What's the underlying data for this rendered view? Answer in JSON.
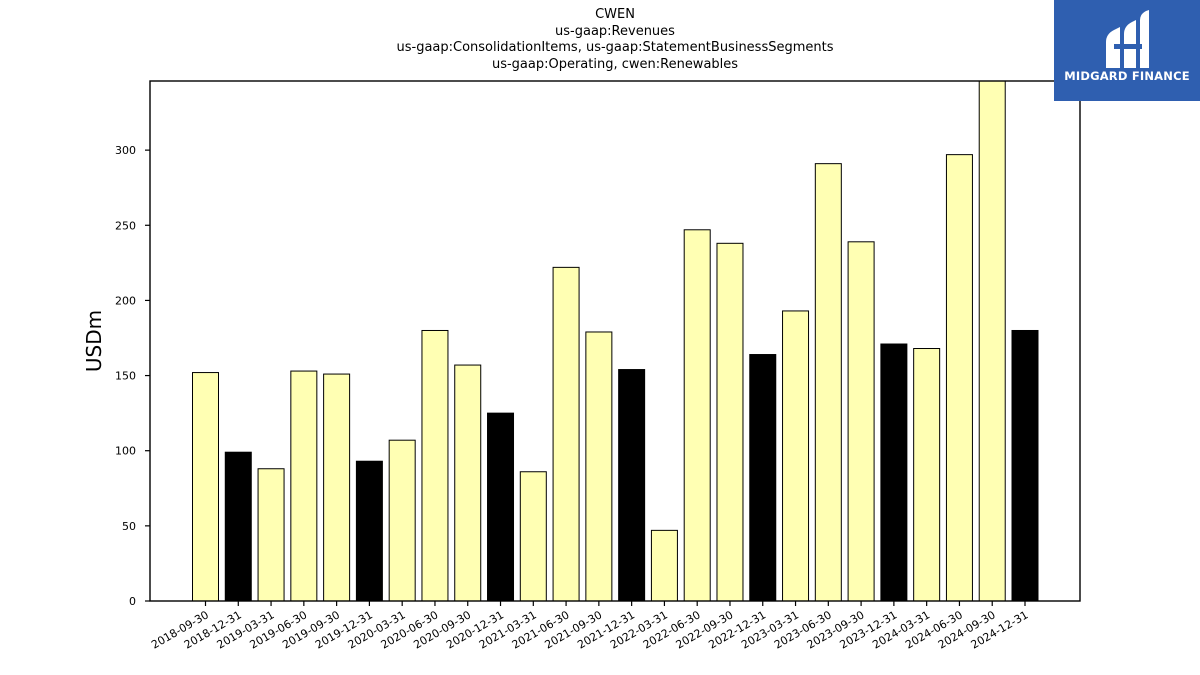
{
  "chart_data": {
    "type": "bar",
    "title_lines": [
      "CWEN",
      "us-gaap:Revenues",
      "us-gaap:ConsolidationItems, us-gaap:StatementBusinessSegments",
      "us-gaap:Operating, cwen:Renewables"
    ],
    "ylabel": "USDm",
    "xlabel": "",
    "ylim": [
      0,
      346
    ],
    "yticks": [
      0,
      50,
      100,
      150,
      200,
      250,
      300
    ],
    "grid": false,
    "categories": [
      "2018-09-30",
      "2018-12-31",
      "2019-03-31",
      "2019-06-30",
      "2019-09-30",
      "2019-12-31",
      "2020-03-31",
      "2020-06-30",
      "2020-09-30",
      "2020-12-31",
      "2021-03-31",
      "2021-06-30",
      "2021-09-30",
      "2021-12-31",
      "2022-03-31",
      "2022-06-30",
      "2022-09-30",
      "2022-12-31",
      "2023-03-31",
      "2023-06-30",
      "2023-09-30",
      "2023-12-31",
      "2024-03-31",
      "2024-06-30",
      "2024-09-30",
      "2024-12-31"
    ],
    "values": [
      152,
      99,
      88,
      153,
      151,
      93,
      107,
      180,
      157,
      125,
      86,
      222,
      179,
      154,
      47,
      247,
      238,
      164,
      193,
      291,
      239,
      171,
      168,
      297,
      346,
      180
    ],
    "bar_colors": {
      "quarter": "#ffffb3",
      "year_end": "#000000",
      "edge": "#000000"
    },
    "highlight_categories": [
      "2018-12-31",
      "2019-12-31",
      "2020-12-31",
      "2021-12-31",
      "2022-12-31",
      "2023-12-31",
      "2024-12-31"
    ]
  },
  "logo": {
    "text": "MIDGARD FINANCE",
    "background": "#2f5fb0",
    "icon": "midgard-logo-icon"
  }
}
